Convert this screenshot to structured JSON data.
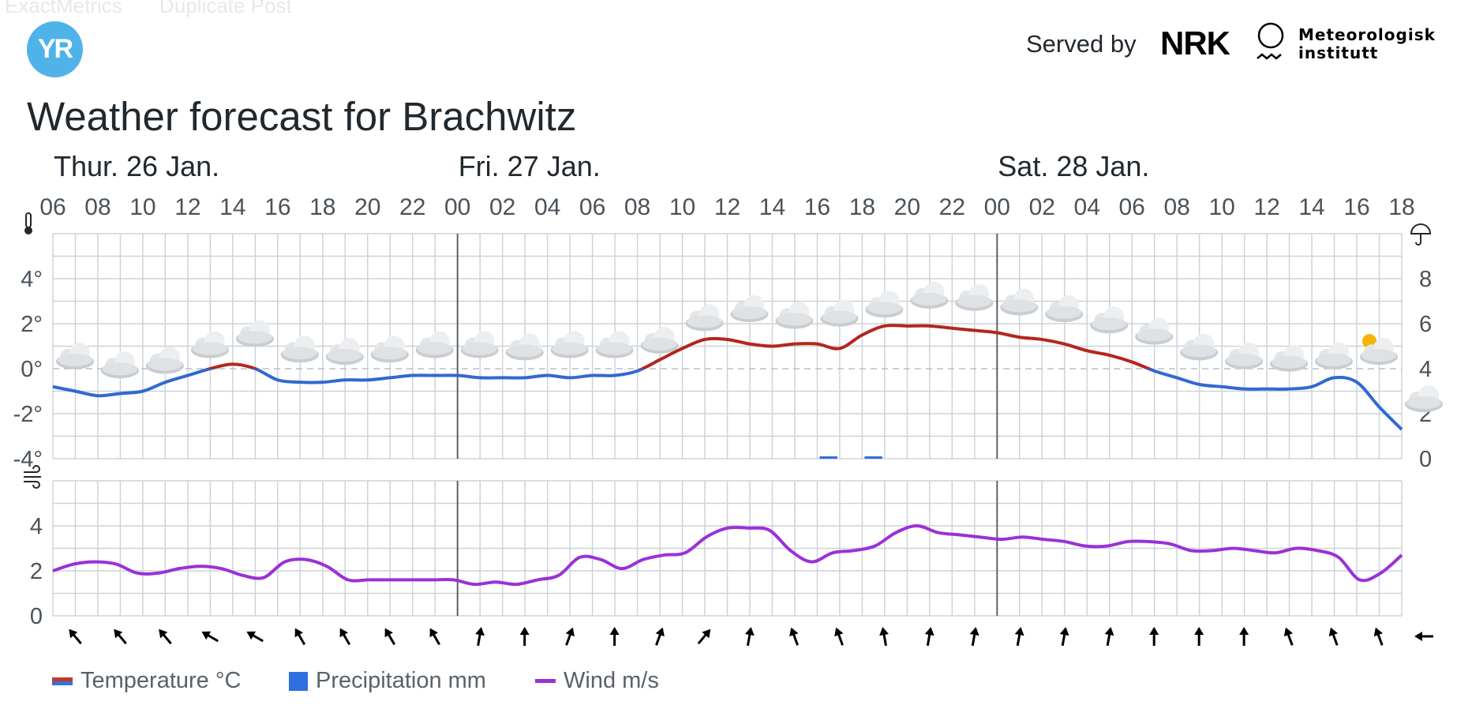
{
  "background_labels": [
    "ExactMetrics",
    "Duplicate Post"
  ],
  "logo_text": "YR",
  "served_by": "Served by",
  "nrk_logo": "NRK",
  "met_logo_lines": [
    "Meteorologisk",
    "institutt"
  ],
  "title": "Weather forecast for Brachwitz",
  "legend": {
    "temperature": "Temperature °C",
    "precipitation": "Precipitation mm",
    "wind": "Wind m/s"
  },
  "colors": {
    "temp_positive": "#b3261e",
    "temp_negative": "#3069d0",
    "precip": "#2f6fe0",
    "wind": "#9b30d9",
    "grid": "#cdd3d9",
    "day_line": "#5b6268"
  },
  "chart_data": {
    "type": "line",
    "days": [
      {
        "label": "Thur. 26 Jan.",
        "start_index": 0
      },
      {
        "label": "Fri. 27 Jan.",
        "start_index": 9
      },
      {
        "label": "Sat. 28 Jan.",
        "start_index": 21
      }
    ],
    "hour_labels": [
      "06",
      "08",
      "10",
      "12",
      "14",
      "16",
      "18",
      "20",
      "22",
      "00",
      "02",
      "04",
      "06",
      "08",
      "10",
      "12",
      "14",
      "16",
      "18",
      "20",
      "22",
      "00",
      "02",
      "04",
      "06",
      "08",
      "10",
      "12",
      "14",
      "16",
      "18"
    ],
    "temperature": {
      "unit": "°C",
      "y_ticks": [
        "4°",
        "2°",
        "0°",
        "-2°",
        "-4°"
      ],
      "ylim": [
        -4,
        6
      ],
      "values": [
        -0.8,
        -1.0,
        -1.2,
        -1.1,
        -1.0,
        -0.6,
        -0.3,
        0.0,
        0.2,
        0.0,
        -0.5,
        -0.6,
        -0.6,
        -0.5,
        -0.5,
        -0.4,
        -0.3,
        -0.3,
        -0.3,
        -0.4,
        -0.4,
        -0.4,
        -0.3,
        -0.4,
        -0.3,
        -0.3,
        -0.1,
        0.4,
        0.9,
        1.3,
        1.3,
        1.1,
        1.0,
        1.1,
        1.1,
        0.9,
        1.5,
        1.9,
        1.9,
        1.9,
        1.8,
        1.7,
        1.6,
        1.4,
        1.3,
        1.1,
        0.8,
        0.6,
        0.3,
        -0.1,
        -0.4,
        -0.7,
        -0.8,
        -0.9,
        -0.9,
        -0.9,
        -0.8,
        -0.4,
        -0.6,
        -1.7,
        -2.7
      ]
    },
    "precipitation": {
      "unit": "mm",
      "y_ticks": [
        "8",
        "6",
        "4",
        "2",
        "0"
      ],
      "ylim": [
        0,
        10
      ],
      "bars": [
        {
          "hour_index": 34,
          "value": 0.1
        },
        {
          "hour_index": 36,
          "value": 0.1
        }
      ]
    },
    "wind": {
      "unit": "m/s",
      "y_ticks": [
        "4",
        "2",
        "0"
      ],
      "ylim": [
        0,
        6
      ],
      "values": [
        2.0,
        2.3,
        2.4,
        2.3,
        1.9,
        1.9,
        2.1,
        2.2,
        2.1,
        1.8,
        1.7,
        2.4,
        2.5,
        2.2,
        1.6,
        1.6,
        1.6,
        1.6,
        1.6,
        1.6,
        1.4,
        1.5,
        1.4,
        1.6,
        1.8,
        2.6,
        2.5,
        2.1,
        2.5,
        2.7,
        2.8,
        3.5,
        3.9,
        3.9,
        3.8,
        2.9,
        2.4,
        2.8,
        2.9,
        3.1,
        3.7,
        4.0,
        3.7,
        3.6,
        3.5,
        3.4,
        3.5,
        3.4,
        3.3,
        3.1,
        3.1,
        3.3,
        3.3,
        3.2,
        2.9,
        2.9,
        3.0,
        2.9,
        2.8,
        3.0,
        2.9,
        2.6,
        1.6,
        1.9,
        2.7
      ]
    },
    "weather_symbols": [
      "cloudy",
      "cloudy",
      "cloudy",
      "cloudy",
      "cloudy",
      "cloudy",
      "cloudy",
      "cloudy",
      "cloudy",
      "cloudy",
      "cloudy",
      "cloudy",
      "cloudy",
      "cloudy",
      "cloudy",
      "cloudy",
      "cloudy",
      "cloudy",
      "cloudy",
      "cloudy",
      "cloudy",
      "cloudy",
      "cloudy",
      "cloudy",
      "cloudy",
      "cloudy",
      "cloudy",
      "cloudy",
      "cloudy",
      "partly-sunny",
      "cloudy"
    ],
    "wind_direction_deg": [
      320,
      320,
      320,
      300,
      300,
      330,
      330,
      330,
      330,
      10,
      0,
      20,
      0,
      20,
      40,
      10,
      340,
      340,
      350,
      10,
      10,
      10,
      10,
      10,
      0,
      0,
      0,
      340,
      340,
      340,
      270
    ]
  }
}
